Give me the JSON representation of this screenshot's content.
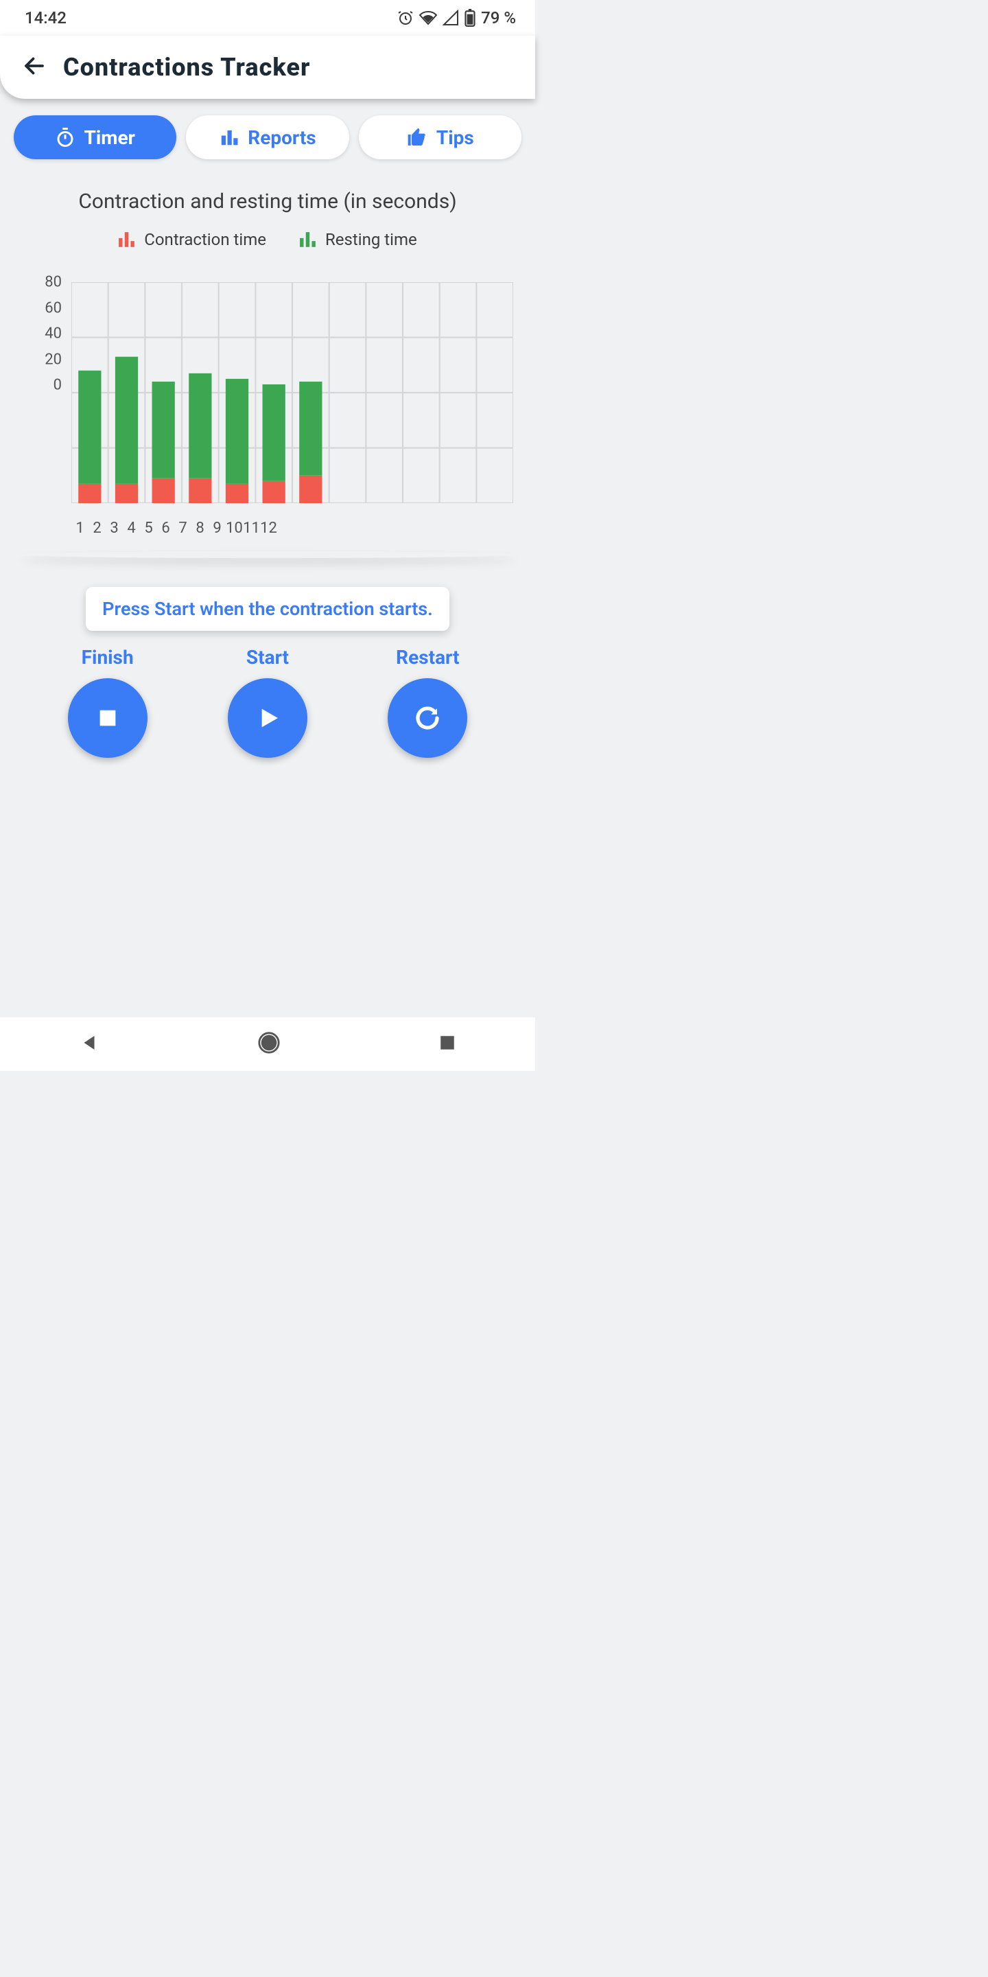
{
  "status": {
    "time": "14:42",
    "battery": "79 %"
  },
  "app_title": "Contractions Tracker",
  "tabs": {
    "timer": {
      "label": "Timer"
    },
    "reports": {
      "label": "Reports"
    },
    "tips": {
      "label": "Tips"
    }
  },
  "chart": {
    "type": "stacked-bar",
    "title": "Contraction and resting time (in seconds)",
    "legend": {
      "contraction": "Contraction time",
      "resting": "Resting time"
    },
    "colors": {
      "contraction": "#f15b4e",
      "resting": "#3da651",
      "grid": "#d6d6d6",
      "axis_text": "#555555",
      "background": "#eff1f3"
    },
    "ylim": [
      0,
      80
    ],
    "ytick_step": 20,
    "yticks": [
      0,
      20,
      40,
      60,
      80
    ],
    "x_categories": [
      "1",
      "2",
      "3",
      "4",
      "5",
      "6",
      "7",
      "8",
      "9",
      "10",
      "11",
      "12"
    ],
    "bar_width": 0.62,
    "series": [
      {
        "contraction": 7,
        "resting": 41
      },
      {
        "contraction": 7,
        "resting": 46
      },
      {
        "contraction": 9,
        "resting": 35
      },
      {
        "contraction": 9,
        "resting": 38
      },
      {
        "contraction": 7,
        "resting": 38
      },
      {
        "contraction": 8,
        "resting": 35
      },
      {
        "contraction": 10,
        "resting": 34
      }
    ]
  },
  "hint": "Press Start when the contraction starts.",
  "actions": {
    "finish": {
      "label": "Finish"
    },
    "start": {
      "label": "Start"
    },
    "restart": {
      "label": "Restart"
    }
  },
  "theme": {
    "accent": "#3a7cf5",
    "surface": "#ffffff",
    "page_bg": "#eff1f3",
    "text_dark": "#1d2b36"
  }
}
